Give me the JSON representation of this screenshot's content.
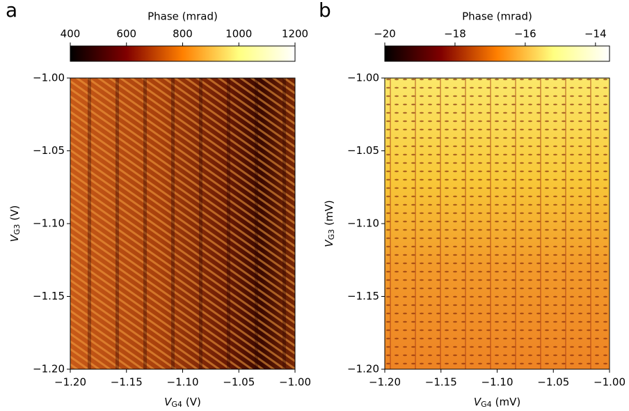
{
  "chart_data": [
    {
      "type": "heatmap",
      "panel_label": "a",
      "colorbar": {
        "label": "Phase (mrad)",
        "colormap": "afmhot",
        "lim": [
          400,
          1200
        ],
        "ticks": [
          400,
          600,
          800,
          1000,
          1200
        ]
      },
      "xlabel": {
        "symbol": "V",
        "subscript": "G4",
        "unit": "(V)"
      },
      "ylabel": {
        "symbol": "V",
        "subscript": "G3",
        "unit": "(V)"
      },
      "xlim": [
        -1.2,
        -1.0
      ],
      "xticks": [
        {
          "value": -1.2,
          "label": "−1.20"
        },
        {
          "value": -1.15,
          "label": "−1.15"
        },
        {
          "value": -1.1,
          "label": "−1.10"
        },
        {
          "value": -1.05,
          "label": "−1.05"
        },
        {
          "value": -1.0,
          "label": "−1.00"
        }
      ],
      "ylim": [
        -1.2,
        -1.0
      ],
      "yticks": [
        {
          "value": -1.2,
          "label": "−1.20"
        },
        {
          "value": -1.15,
          "label": "−1.15"
        },
        {
          "value": -1.1,
          "label": "−1.10"
        },
        {
          "value": -1.05,
          "label": "−1.05"
        },
        {
          "value": -1.0,
          "label": "−1.00"
        }
      ]
    },
    {
      "type": "heatmap",
      "panel_label": "b",
      "colorbar": {
        "label": "Phase (mrad)",
        "colormap": "afmhot",
        "lim": [
          -20,
          -13.6
        ],
        "ticks": [
          {
            "value": -20,
            "label": "−20"
          },
          {
            "value": -18,
            "label": "−18"
          },
          {
            "value": -16,
            "label": "−16"
          },
          {
            "value": -14,
            "label": "−14"
          }
        ]
      },
      "xlabel": {
        "symbol": "V",
        "subscript": "G4",
        "unit": "(mV)"
      },
      "ylabel": {
        "symbol": "V",
        "subscript": "G3",
        "unit": "(mV)"
      },
      "xlim": [
        -1.2,
        -1.0
      ],
      "xticks": [
        {
          "value": -1.2,
          "label": "−1.20"
        },
        {
          "value": -1.15,
          "label": "−1.15"
        },
        {
          "value": -1.1,
          "label": "−1.10"
        },
        {
          "value": -1.05,
          "label": "−1.05"
        },
        {
          "value": -1.0,
          "label": "−1.00"
        }
      ],
      "ylim": [
        -1.2,
        -1.0
      ],
      "yticks": [
        {
          "value": -1.2,
          "label": "−1.20"
        },
        {
          "value": -1.15,
          "label": "−1.15"
        },
        {
          "value": -1.1,
          "label": "−1.10"
        },
        {
          "value": -1.05,
          "label": "−1.05"
        },
        {
          "value": -1.0,
          "label": "−1.00"
        }
      ]
    }
  ]
}
